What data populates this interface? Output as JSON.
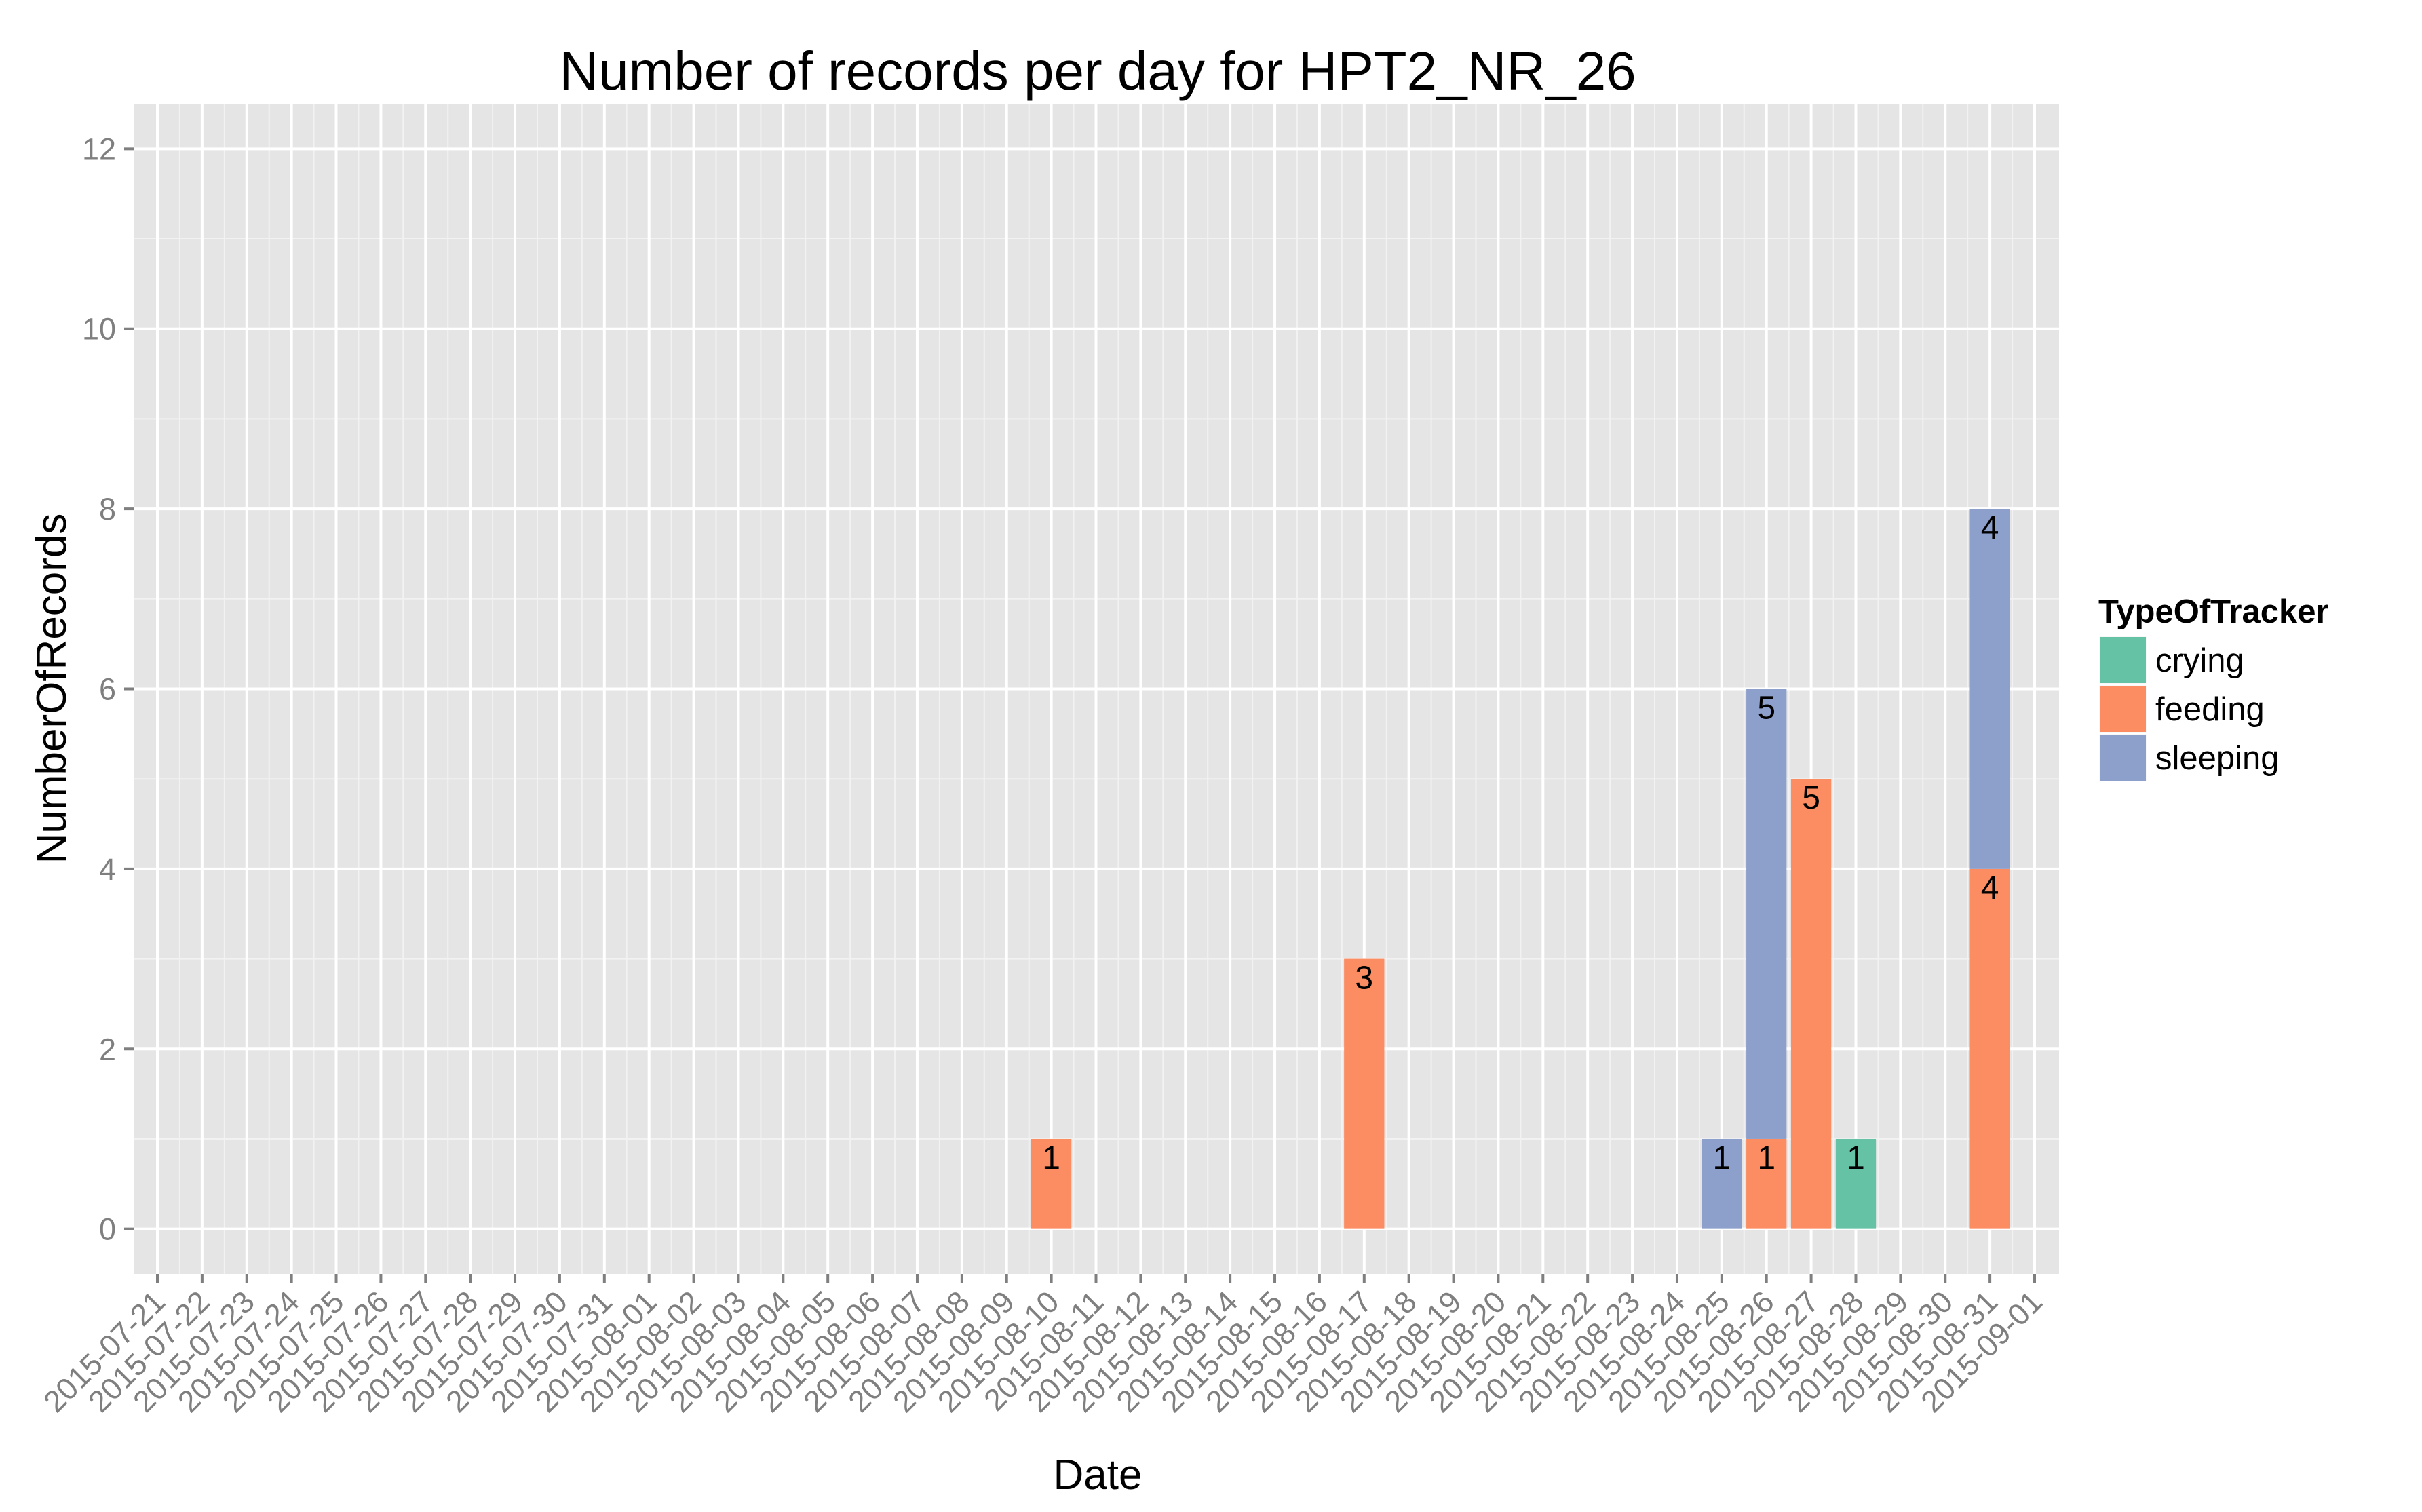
{
  "chart_data": {
    "type": "bar",
    "stacked": true,
    "title": "Number of records per day for HPT2_NR_26",
    "xlabel": "Date",
    "ylabel": "NumberOfRecords",
    "ylim": [
      -0.5,
      12.5
    ],
    "yticks": [
      0,
      2,
      4,
      6,
      8,
      10,
      12
    ],
    "xrange": [
      "2015-07-21",
      "2015-09-01"
    ],
    "xticks": [
      "2015-07-21",
      "2015-07-22",
      "2015-07-23",
      "2015-07-24",
      "2015-07-25",
      "2015-07-26",
      "2015-07-27",
      "2015-07-28",
      "2015-07-29",
      "2015-07-30",
      "2015-07-31",
      "2015-08-01",
      "2015-08-02",
      "2015-08-03",
      "2015-08-04",
      "2015-08-05",
      "2015-08-06",
      "2015-08-07",
      "2015-08-08",
      "2015-08-09",
      "2015-08-10",
      "2015-08-11",
      "2015-08-12",
      "2015-08-13",
      "2015-08-14",
      "2015-08-15",
      "2015-08-16",
      "2015-08-17",
      "2015-08-18",
      "2015-08-19",
      "2015-08-20",
      "2015-08-21",
      "2015-08-22",
      "2015-08-23",
      "2015-08-24",
      "2015-08-25",
      "2015-08-26",
      "2015-08-27",
      "2015-08-28",
      "2015-08-29",
      "2015-08-30",
      "2015-08-31",
      "2015-09-01"
    ],
    "grid": true,
    "legend": {
      "title": "TypeOfTracker",
      "placement": "right",
      "items": [
        {
          "name": "crying",
          "color": "#66C2A5"
        },
        {
          "name": "feeding",
          "color": "#FC8D62"
        },
        {
          "name": "sleeping",
          "color": "#8DA0CB"
        }
      ]
    },
    "bars": [
      {
        "x": "2015-08-10",
        "segments": [
          {
            "type": "feeding",
            "value": 1
          }
        ]
      },
      {
        "x": "2015-08-17",
        "segments": [
          {
            "type": "feeding",
            "value": 3
          }
        ]
      },
      {
        "x": "2015-08-25",
        "segments": [
          {
            "type": "sleeping",
            "value": 1
          }
        ]
      },
      {
        "x": "2015-08-26",
        "segments": [
          {
            "type": "feeding",
            "value": 1
          },
          {
            "type": "sleeping",
            "value": 5
          }
        ]
      },
      {
        "x": "2015-08-27",
        "segments": [
          {
            "type": "feeding",
            "value": 5
          }
        ]
      },
      {
        "x": "2015-08-28",
        "segments": [
          {
            "type": "crying",
            "value": 1
          }
        ]
      },
      {
        "x": "2015-08-31",
        "segments": [
          {
            "type": "feeding",
            "value": 4
          },
          {
            "type": "sleeping",
            "value": 4
          }
        ]
      }
    ]
  }
}
